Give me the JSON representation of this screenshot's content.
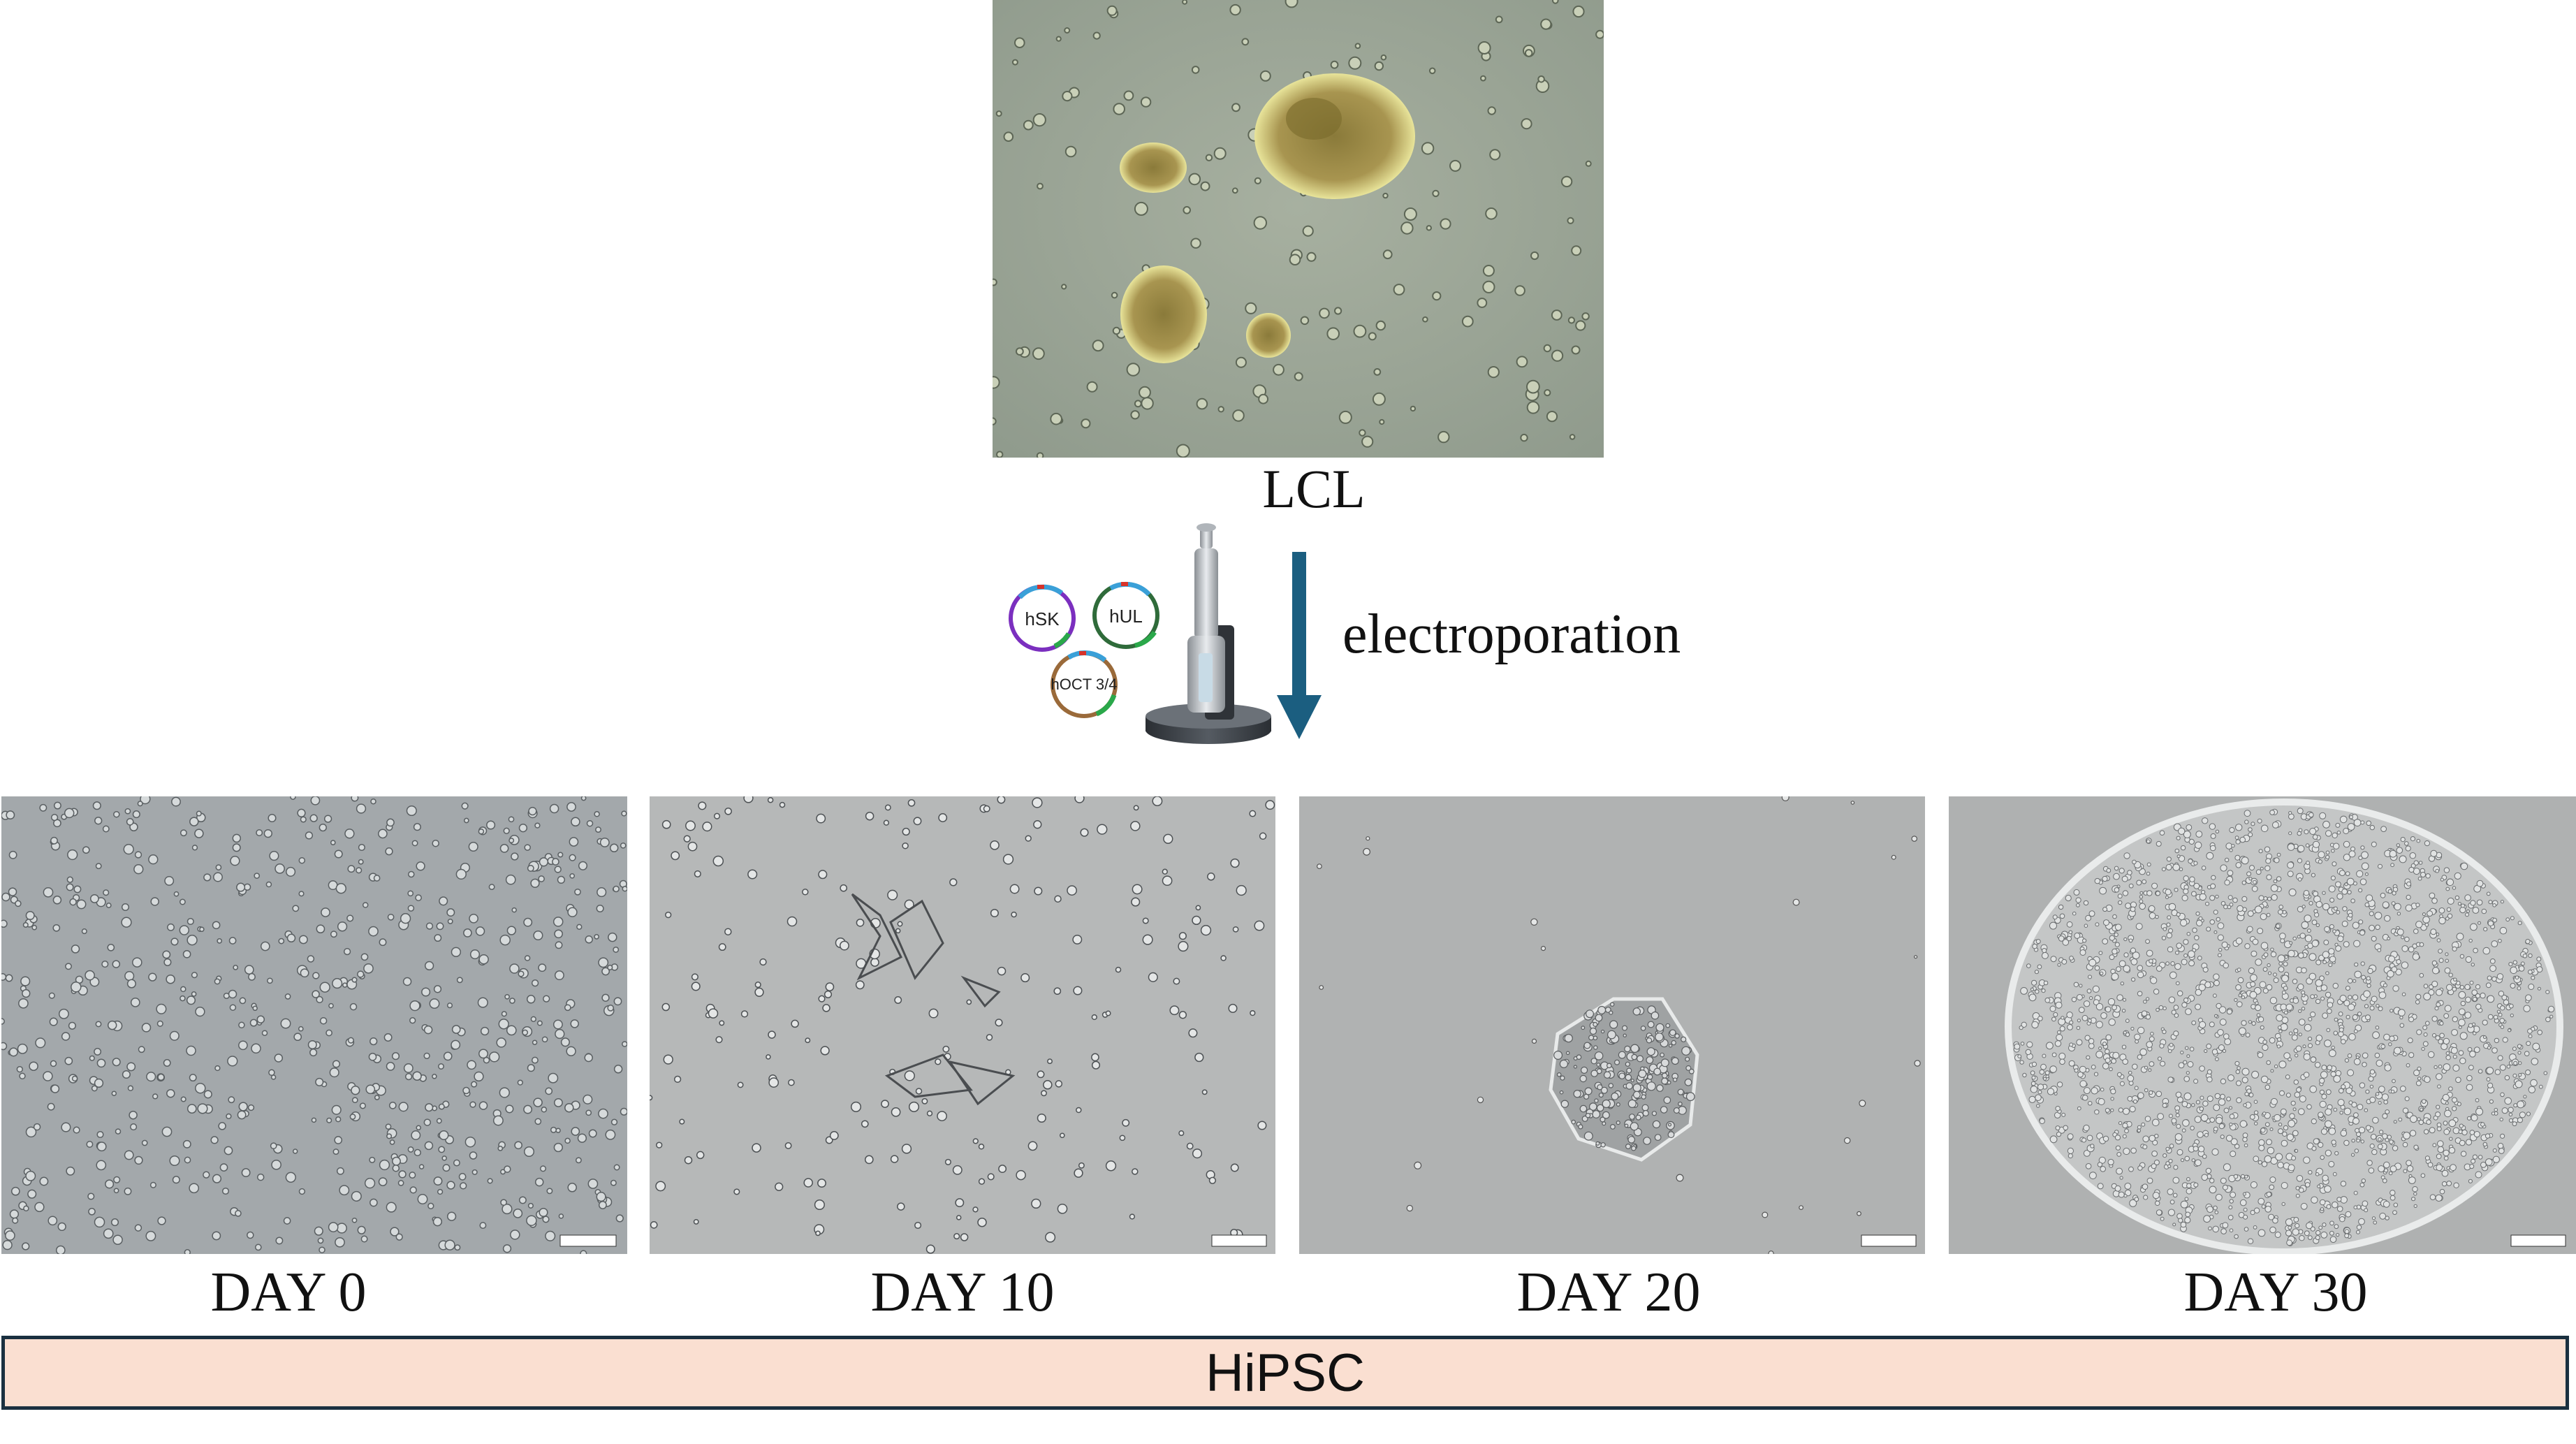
{
  "top_image": {
    "caption": "LCL"
  },
  "process": {
    "label": "electroporation",
    "plasmids": [
      "hSK",
      "hUL",
      "hOCT 3/4"
    ],
    "arrow_color": "#1b5e80"
  },
  "stages": [
    {
      "caption": "DAY 0"
    },
    {
      "caption": "DAY 10"
    },
    {
      "caption": "DAY 20"
    },
    {
      "caption": "DAY 30"
    }
  ],
  "result": {
    "label": "HiPSC",
    "fill": "#fadfd1",
    "border": "#1a3040"
  }
}
